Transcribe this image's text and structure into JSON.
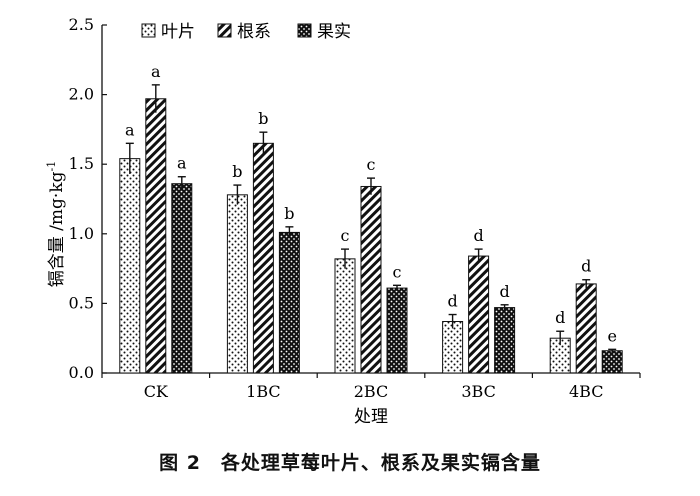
{
  "caption": "图 2　各处理草莓叶片、根系及果实镉含量",
  "chart_data": {
    "type": "bar",
    "xlabel": "处理",
    "ylabel": "镉含量 /mg·kg",
    "ylabel_sup": "-1",
    "ylim": [
      0,
      2.5
    ],
    "yticks": [
      "0.0",
      "0.5",
      "1.0",
      "1.5",
      "2.0",
      "2.5"
    ],
    "categories": [
      "CK",
      "1BC",
      "2BC",
      "3BC",
      "4BC"
    ],
    "legend_position": "top",
    "series": [
      {
        "name": "叶片",
        "pattern": "dots",
        "values": [
          1.54,
          1.28,
          0.82,
          0.37,
          0.25
        ],
        "errors": [
          0.11,
          0.07,
          0.07,
          0.05,
          0.05
        ],
        "letters": [
          "a",
          "b",
          "c",
          "d",
          "d"
        ]
      },
      {
        "name": "根系",
        "pattern": "stripes",
        "values": [
          1.97,
          1.65,
          1.34,
          0.84,
          0.64
        ],
        "errors": [
          0.1,
          0.08,
          0.06,
          0.05,
          0.03
        ],
        "letters": [
          "a",
          "b",
          "c",
          "d",
          "d"
        ]
      },
      {
        "name": "果实",
        "pattern": "dark",
        "values": [
          1.36,
          1.01,
          0.61,
          0.47,
          0.16
        ],
        "errors": [
          0.05,
          0.04,
          0.02,
          0.02,
          0.01
        ],
        "letters": [
          "a",
          "b",
          "c",
          "d",
          "e"
        ]
      }
    ]
  }
}
